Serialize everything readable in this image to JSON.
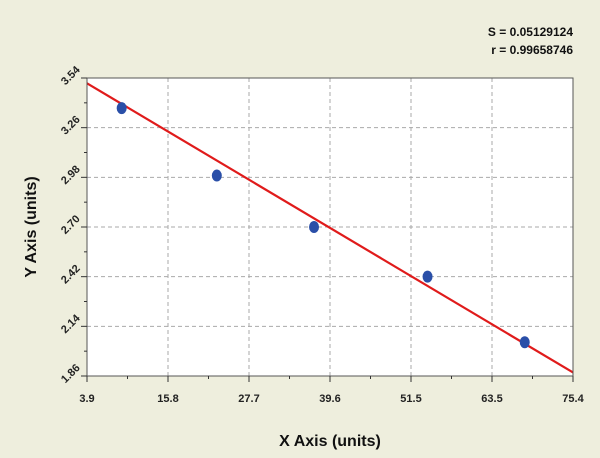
{
  "chart_data": {
    "type": "scatter",
    "title": "",
    "xlabel": "X Axis (units)",
    "ylabel": "Y Axis (units)",
    "xlim": [
      3.9,
      75.4
    ],
    "ylim": [
      1.86,
      3.54
    ],
    "x_ticks": [
      "3.9",
      "15.8",
      "27.7",
      "39.6",
      "51.5",
      "63.5",
      "75.4"
    ],
    "y_ticks": [
      "1.86",
      "2.14",
      "2.42",
      "2.70",
      "2.98",
      "3.26",
      "3.54"
    ],
    "grid": true,
    "series": [
      {
        "points": [
          {
            "x": 9.0,
            "y": 3.37
          },
          {
            "x": 23.0,
            "y": 2.99
          },
          {
            "x": 37.3,
            "y": 2.7
          },
          {
            "x": 54.0,
            "y": 2.42
          },
          {
            "x": 68.3,
            "y": 2.05
          }
        ],
        "color": "#2a4fa8"
      }
    ],
    "fit_line": {
      "x": [
        3.9,
        75.4
      ],
      "y": [
        3.51,
        1.88
      ],
      "color": "#e01b1b"
    },
    "stats": [
      "S = 0.05129124",
      "r = 0.99658746"
    ]
  }
}
